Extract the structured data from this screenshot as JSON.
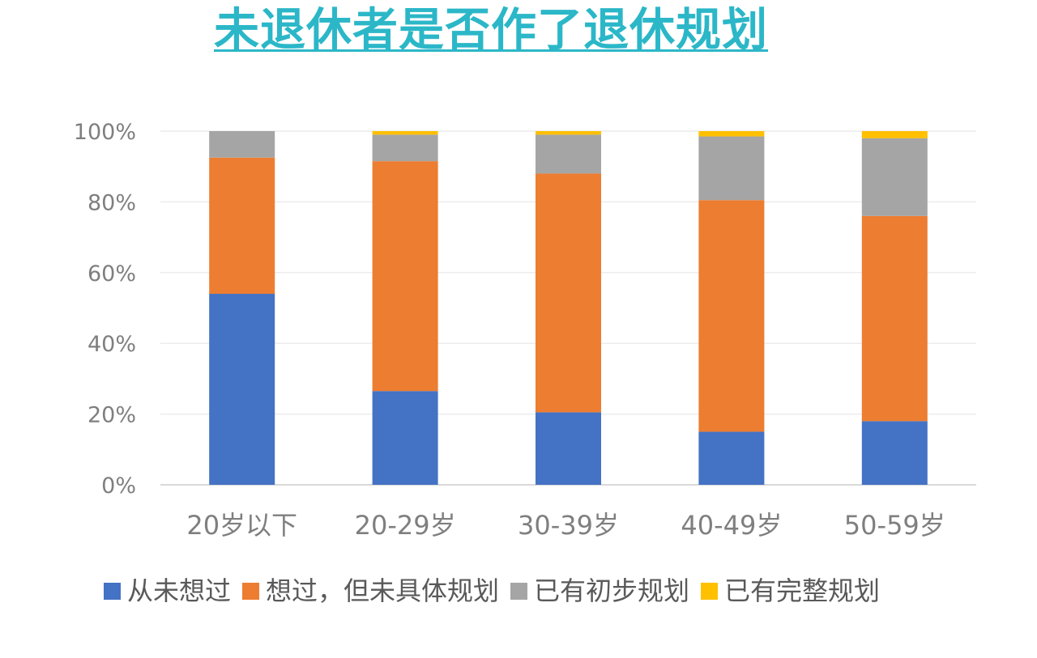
{
  "title": "未退休者是否作了退休规划",
  "colors": {
    "title": "#2bb7c8",
    "grid": "#ececec",
    "axis": "#d9d9d9",
    "tick_text": "#7f7f7f"
  },
  "chart_data": {
    "type": "bar",
    "stacked": true,
    "title": "",
    "xlabel": "",
    "ylabel": "",
    "categories": [
      "20岁以下",
      "20-29岁",
      "30-39岁",
      "40-49岁",
      "50-59岁"
    ],
    "ylim": [
      0,
      100
    ],
    "yticks": [
      "0%",
      "20%",
      "40%",
      "60%",
      "80%",
      "100%"
    ],
    "grid": true,
    "legend_position": "bottom",
    "series": [
      {
        "name": "从未想过",
        "color": "#4472c4",
        "values": [
          54,
          26.5,
          20.5,
          15,
          18
        ]
      },
      {
        "name": "想过，但未具体规划",
        "color": "#ed7d31",
        "values": [
          38.5,
          65,
          67.5,
          65.5,
          58
        ]
      },
      {
        "name": "已有初步规划",
        "color": "#a5a5a5",
        "values": [
          7.5,
          7.5,
          11,
          18,
          22
        ]
      },
      {
        "name": "已有完整规划",
        "color": "#ffc000",
        "values": [
          0,
          1,
          1,
          1.5,
          2
        ]
      }
    ]
  }
}
